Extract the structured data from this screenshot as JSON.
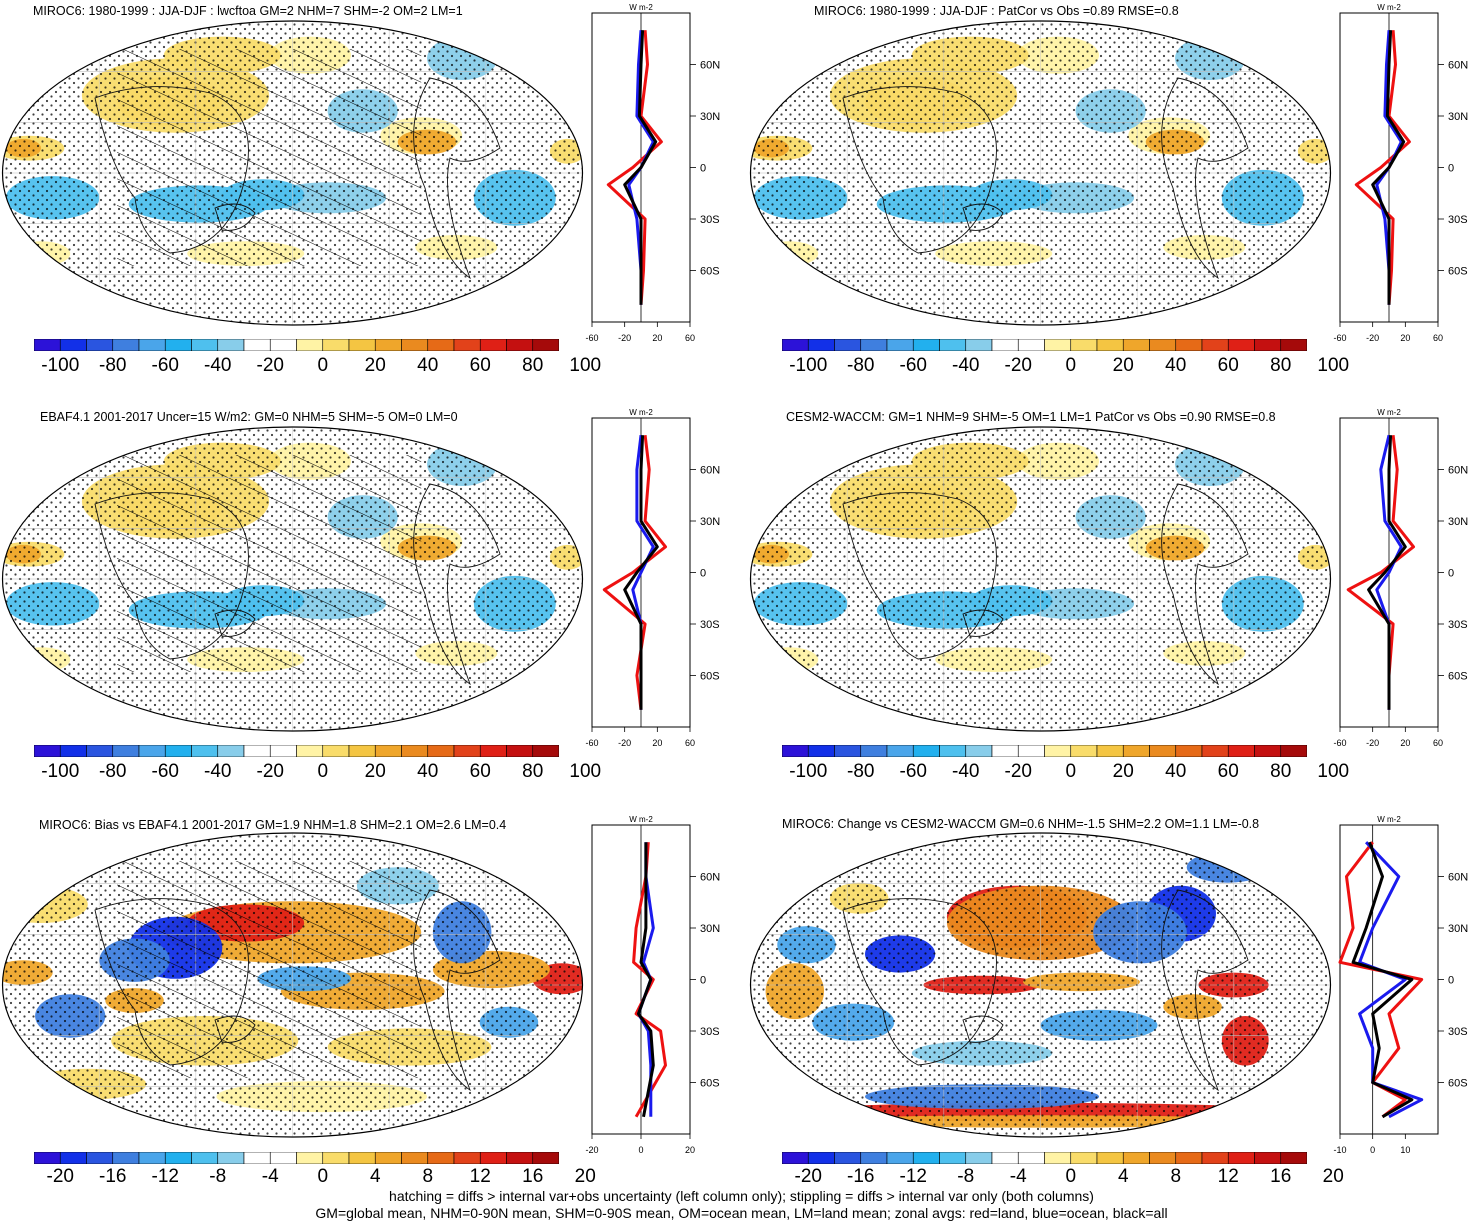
{
  "colors": {
    "scale": [
      "#2c12d8",
      "#1230e8",
      "#2a55e0",
      "#3f7fdf",
      "#4aa5ea",
      "#22b0ee",
      "#4ec0ee",
      "#88cdea",
      "#ffffff",
      "#ffffff",
      "#fff3a5",
      "#f9dc6a",
      "#f4c542",
      "#efa62b",
      "#ea8a1f",
      "#e66a17",
      "#e2421a",
      "#df2016",
      "#c41010",
      "#a50a0a"
    ],
    "red_line": "#ee1111",
    "blue_line": "#1a1aee",
    "black_line": "#000000"
  },
  "panels": [
    {
      "id": "miroc6-clim",
      "title": "MIROC6: 1980-1999 : JJA-DJF : lwcftoa GM=2 NHM=7 SHM=-2 OM=2 LM=1",
      "colorbar_labels": [
        "-100",
        "-80",
        "-60",
        "-40",
        "-20",
        "0",
        "20",
        "40",
        "60",
        "80",
        "100"
      ],
      "zonal_xlabels": [
        "-60",
        "-20",
        "20",
        "60"
      ],
      "zonal_unit": "W m-2",
      "hatched": true
    },
    {
      "id": "miroc6-patcor",
      "title": "MIROC6: 1980-1999 : JJA-DJF : PatCor vs Obs =0.89 RMSE=0.8",
      "colorbar_labels": [
        "-100",
        "-80",
        "-60",
        "-40",
        "-20",
        "0",
        "20",
        "40",
        "60",
        "80",
        "100"
      ],
      "zonal_xlabels": [
        "-60",
        "-20",
        "20",
        "60"
      ],
      "zonal_unit": "W m-2",
      "hatched": false
    },
    {
      "id": "ebaf",
      "title": "EBAF4.1 2001-2017 Uncer=15 W/m2: GM=0 NHM=5 SHM=-5 OM=0 LM=0",
      "colorbar_labels": [
        "-100",
        "-80",
        "-60",
        "-40",
        "-20",
        "0",
        "20",
        "40",
        "60",
        "80",
        "100"
      ],
      "zonal_xlabels": [
        "-60",
        "-20",
        "20",
        "60"
      ],
      "zonal_unit": "W m-2",
      "hatched": true
    },
    {
      "id": "cesm2",
      "title": "CESM2-WACCM: GM=1 NHM=9 SHM=-5 OM=1 LM=1 PatCor vs Obs =0.90 RMSE=0.8",
      "colorbar_labels": [
        "-100",
        "-80",
        "-60",
        "-40",
        "-20",
        "0",
        "20",
        "40",
        "60",
        "80",
        "100"
      ],
      "zonal_xlabels": [
        "-60",
        "-20",
        "20",
        "60"
      ],
      "zonal_unit": "W m-2",
      "hatched": false
    },
    {
      "id": "bias",
      "title": "MIROC6: Bias vs EBAF4.1 2001-2017 GM=1.9 NHM=1.8 SHM=2.1 OM=2.6 LM=0.4",
      "colorbar_labels": [
        "-20",
        "-16",
        "-12",
        "-8",
        "-4",
        "0",
        "4",
        "8",
        "12",
        "16",
        "20"
      ],
      "zonal_xlabels": [
        "-20",
        "0",
        "20"
      ],
      "zonal_unit": "W m-2",
      "hatched": true
    },
    {
      "id": "change",
      "title": "MIROC6: Change vs CESM2-WACCM GM=0.6 NHM=-1.5 SHM=2.2 OM=1.1 LM=-0.8",
      "colorbar_labels": [
        "-20",
        "-16",
        "-12",
        "-8",
        "-4",
        "0",
        "4",
        "8",
        "12",
        "16",
        "20"
      ],
      "zonal_xlabels": [
        "-10",
        "0",
        "10"
      ],
      "zonal_unit": "W m-2",
      "hatched": false
    }
  ],
  "lat_labels": [
    "60N",
    "30N",
    "0",
    "30S",
    "60S"
  ],
  "footer": {
    "line1": "hatching = diffs > internal var+obs uncertainty (left column only); stippling = diffs > internal var only (both columns)",
    "line2": "GM=global mean, NHM=0-90N mean, SHM=0-90S mean, OM=ocean mean, LM=land mean; zonal avgs: red=land, blue=ocean, black=all"
  },
  "chart_data": [
    {
      "type": "heatmap",
      "title": "MIROC6: 1980-1999 : JJA-DJF : lwcftoa GM=2 NHM=7 SHM=-2 OM=2 LM=1",
      "colorbar_range": [
        -100,
        100
      ],
      "zonal_mean": {
        "xlim": [
          -60,
          60
        ],
        "lat": [
          80,
          60,
          30,
          15,
          0,
          -10,
          -30,
          -60,
          -80
        ],
        "land": [
          5,
          8,
          0,
          25,
          -10,
          -40,
          5,
          3,
          0
        ],
        "ocean": [
          0,
          -3,
          -5,
          15,
          0,
          -15,
          -5,
          0,
          0
        ],
        "all": [
          2,
          0,
          -2,
          18,
          0,
          -20,
          0,
          0,
          0
        ]
      }
    },
    {
      "type": "heatmap",
      "title": "MIROC6: 1980-1999 : JJA-DJF : PatCor vs Obs =0.89 RMSE=0.8",
      "colorbar_range": [
        -100,
        100
      ],
      "zonal_mean": {
        "xlim": [
          -60,
          60
        ],
        "lat": [
          80,
          60,
          30,
          15,
          0,
          -10,
          -30,
          -60,
          -80
        ],
        "land": [
          5,
          8,
          0,
          25,
          -10,
          -40,
          5,
          3,
          0
        ],
        "ocean": [
          0,
          -3,
          -5,
          15,
          0,
          -15,
          -5,
          0,
          0
        ],
        "all": [
          2,
          0,
          -2,
          18,
          0,
          -20,
          0,
          0,
          0
        ]
      }
    },
    {
      "type": "heatmap",
      "title": "EBAF4.1 2001-2017 Uncer=15 W/m2: GM=0 NHM=5 SHM=-5 OM=0 LM=0",
      "colorbar_range": [
        -100,
        100
      ],
      "zonal_mean": {
        "xlim": [
          -60,
          60
        ],
        "lat": [
          80,
          60,
          30,
          15,
          0,
          -10,
          -30,
          -60,
          -80
        ],
        "land": [
          5,
          10,
          5,
          30,
          -10,
          -45,
          5,
          -5,
          0
        ],
        "ocean": [
          0,
          -5,
          -5,
          15,
          0,
          -10,
          0,
          0,
          0
        ],
        "all": [
          2,
          0,
          0,
          20,
          -5,
          -20,
          0,
          0,
          0
        ]
      }
    },
    {
      "type": "heatmap",
      "title": "CESM2-WACCM: GM=1 NHM=9 SHM=-5 OM=1 LM=1 PatCor vs Obs =0.90 RMSE=0.8",
      "colorbar_range": [
        -100,
        100
      ],
      "zonal_mean": {
        "xlim": [
          -60,
          60
        ],
        "lat": [
          80,
          60,
          30,
          15,
          0,
          -10,
          -30,
          -60,
          -80
        ],
        "land": [
          5,
          10,
          5,
          30,
          -10,
          -50,
          5,
          0,
          0
        ],
        "ocean": [
          0,
          -10,
          -5,
          15,
          0,
          -15,
          0,
          0,
          0
        ],
        "all": [
          2,
          0,
          0,
          20,
          -5,
          -25,
          0,
          0,
          0
        ]
      }
    },
    {
      "type": "heatmap",
      "title": "MIROC6: Bias vs EBAF4.1 2001-2017 GM=1.9 NHM=1.8 SHM=2.1 OM=2.6 LM=0.4",
      "colorbar_range": [
        -20,
        20
      ],
      "zonal_mean": {
        "xlim": [
          -20,
          20
        ],
        "lat": [
          80,
          60,
          30,
          10,
          0,
          -20,
          -30,
          -50,
          -80
        ],
        "land": [
          3,
          2,
          -2,
          -3,
          5,
          -2,
          8,
          10,
          -2
        ],
        "ocean": [
          2,
          2,
          5,
          1,
          4,
          -1,
          3,
          4,
          4
        ],
        "all": [
          2,
          2,
          2,
          0,
          4,
          -1,
          4,
          5,
          1
        ]
      }
    },
    {
      "type": "heatmap",
      "title": "MIROC6: Change vs CESM2-WACCM GM=0.6 NHM=-1.5 SHM=2.2 OM=1.1 LM=-0.8",
      "colorbar_range": [
        -20,
        20
      ],
      "zonal_mean": {
        "xlim": [
          -10,
          20
        ],
        "lat": [
          80,
          60,
          30,
          10,
          0,
          -20,
          -40,
          -60,
          -70,
          -80
        ],
        "land": [
          0,
          -8,
          -6,
          -10,
          15,
          5,
          8,
          0,
          10,
          3
        ],
        "ocean": [
          -2,
          8,
          0,
          -4,
          10,
          -4,
          0,
          0,
          15,
          5
        ],
        "all": [
          -1,
          3,
          -2,
          -6,
          12,
          0,
          2,
          0,
          12,
          3
        ]
      }
    }
  ]
}
